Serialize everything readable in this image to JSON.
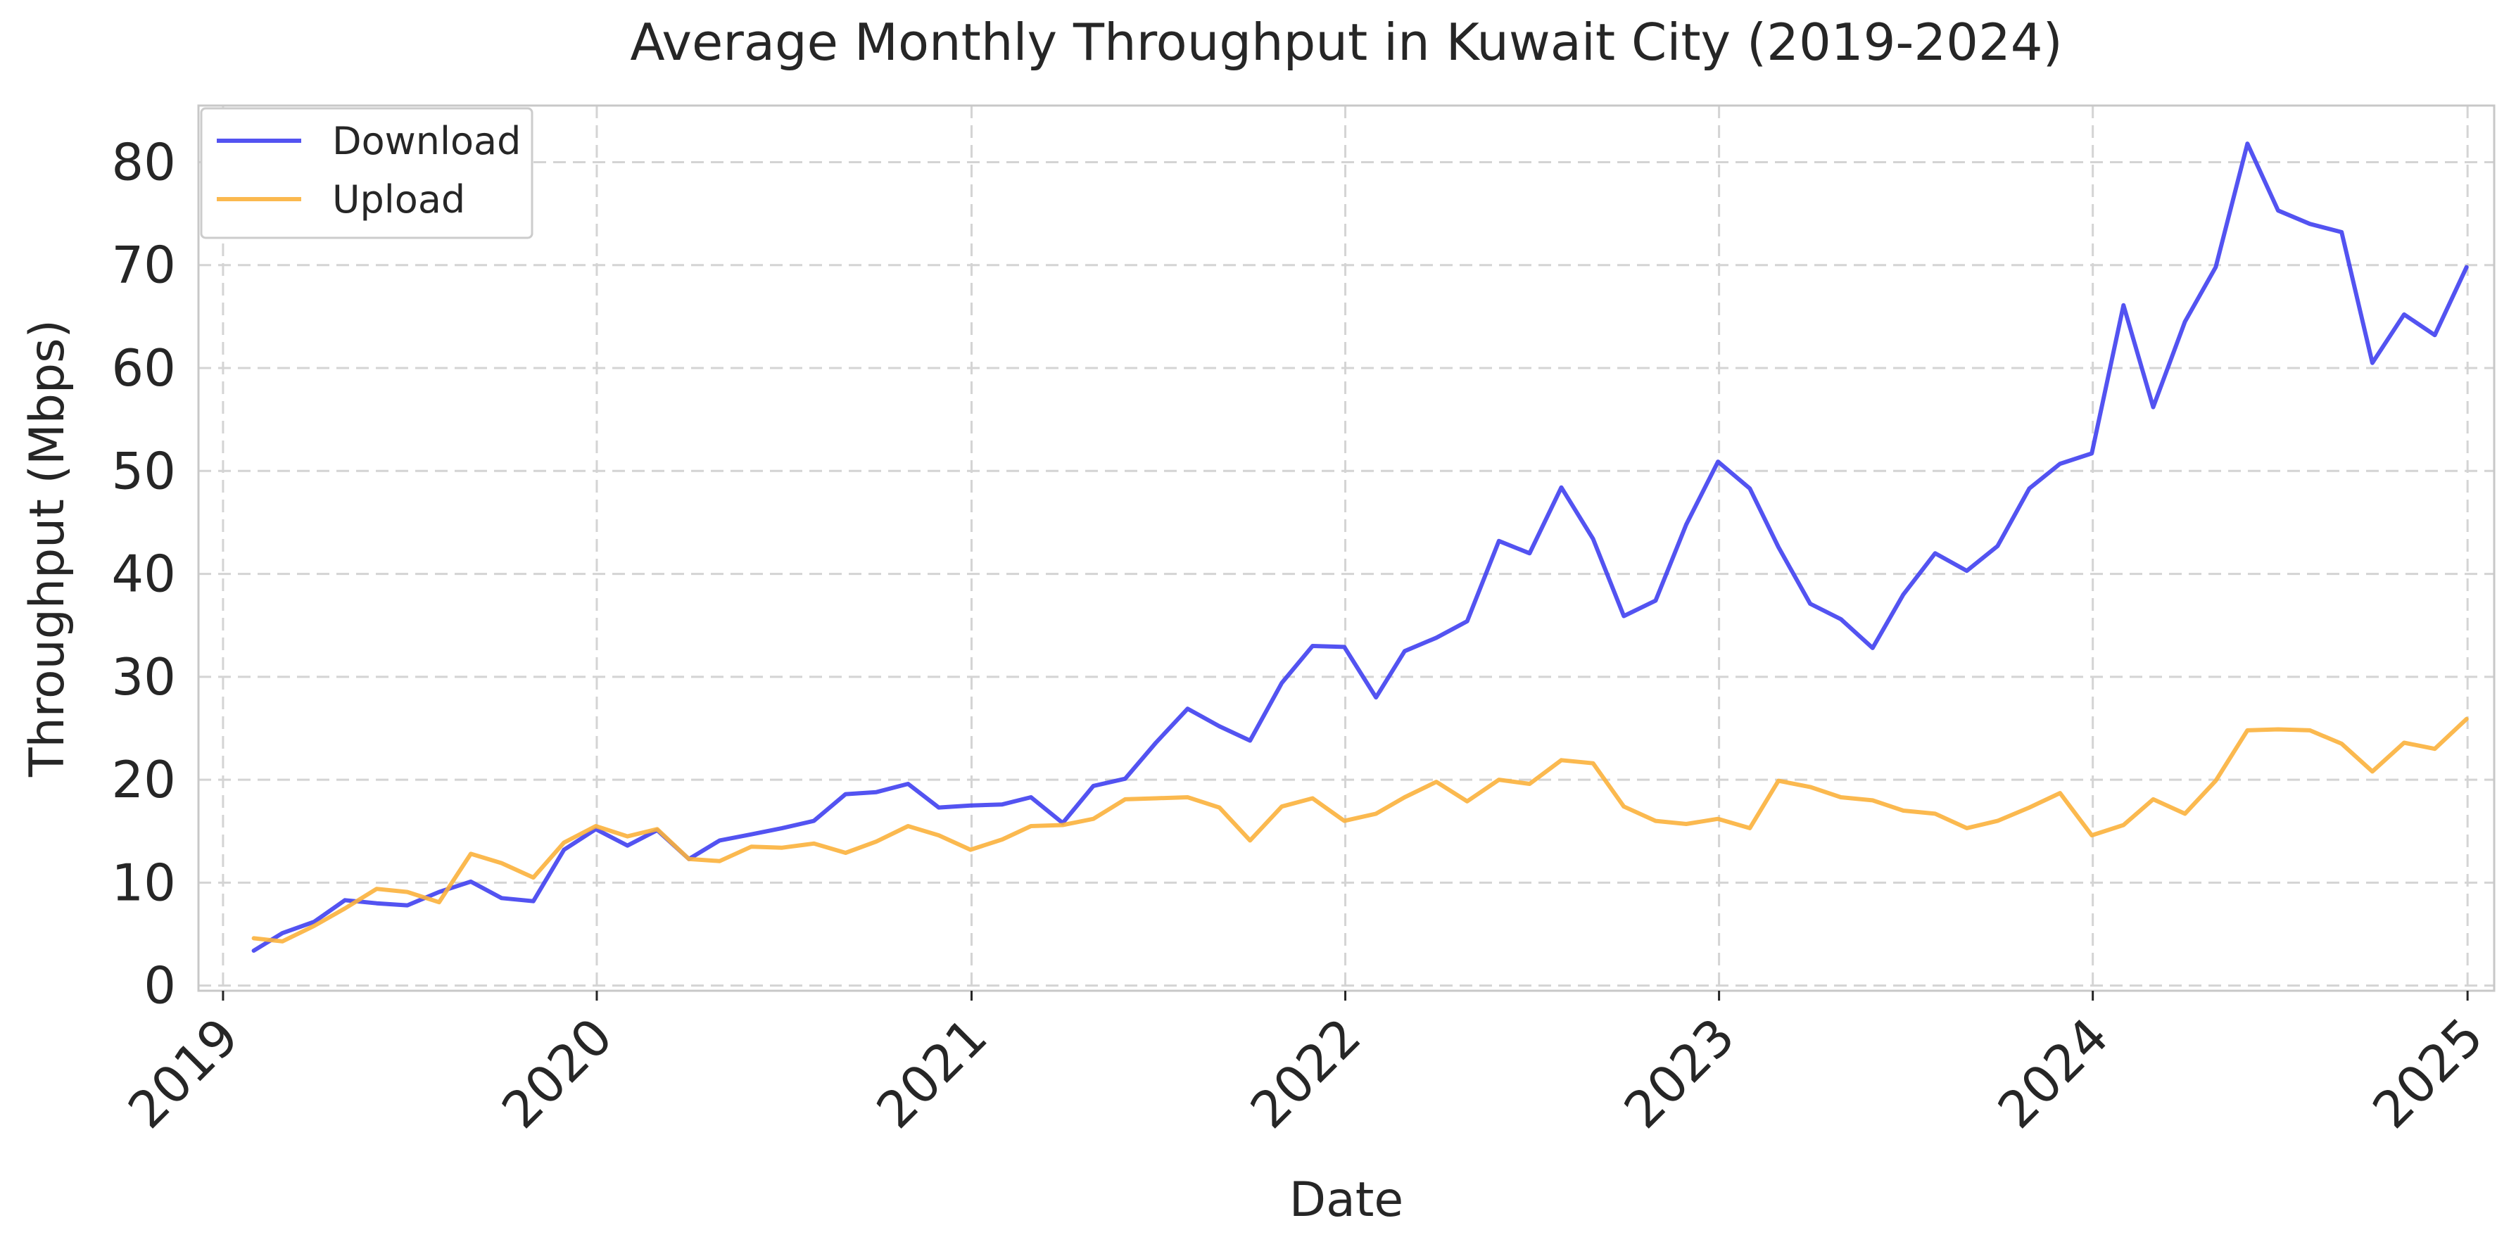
{
  "chart_data": {
    "type": "line",
    "title": "Average Monthly Throughput in Kuwait City (2019-2024)",
    "xlabel": "Date",
    "ylabel": "Throughput (Mbps)",
    "ylim": [
      -0.5,
      85.5
    ],
    "xlim": [
      "2018-12-08",
      "2025-01-27"
    ],
    "x_ticks": [
      "2019",
      "2020",
      "2021",
      "2022",
      "2023",
      "2024",
      "2025"
    ],
    "y_ticks": [
      0,
      10,
      20,
      30,
      40,
      50,
      60,
      70,
      80
    ],
    "grid": true,
    "legend_position": "top-left",
    "x": [
      "2019-01-31",
      "2019-02-28",
      "2019-03-31",
      "2019-04-30",
      "2019-05-31",
      "2019-06-30",
      "2019-07-31",
      "2019-08-31",
      "2019-09-30",
      "2019-10-31",
      "2019-11-30",
      "2019-12-31",
      "2020-01-31",
      "2020-02-29",
      "2020-03-31",
      "2020-04-30",
      "2020-05-31",
      "2020-06-30",
      "2020-07-31",
      "2020-08-31",
      "2020-09-30",
      "2020-10-31",
      "2020-11-30",
      "2020-12-31",
      "2021-01-31",
      "2021-02-28",
      "2021-03-31",
      "2021-04-30",
      "2021-05-31",
      "2021-06-30",
      "2021-07-31",
      "2021-08-31",
      "2021-09-30",
      "2021-10-31",
      "2021-11-30",
      "2021-12-31",
      "2022-01-31",
      "2022-02-28",
      "2022-03-31",
      "2022-04-30",
      "2022-05-31",
      "2022-06-30",
      "2022-07-31",
      "2022-08-31",
      "2022-09-30",
      "2022-10-31",
      "2022-11-30",
      "2022-12-31",
      "2023-01-31",
      "2023-02-28",
      "2023-03-31",
      "2023-04-30",
      "2023-05-31",
      "2023-06-30",
      "2023-07-31",
      "2023-08-31",
      "2023-09-30",
      "2023-10-31",
      "2023-11-30",
      "2023-12-31",
      "2024-01-31",
      "2024-02-29",
      "2024-03-31",
      "2024-04-30",
      "2024-05-31",
      "2024-06-30",
      "2024-07-31",
      "2024-08-31",
      "2024-09-30",
      "2024-10-31",
      "2024-11-30",
      "2024-12-31"
    ],
    "series": [
      {
        "name": "Download",
        "color": "#4040f0",
        "values": [
          3.4,
          5.1,
          6.2,
          8.3,
          8.0,
          7.8,
          9.1,
          10.1,
          8.5,
          8.2,
          13.2,
          15.2,
          13.6,
          15.1,
          12.3,
          14.1,
          14.7,
          15.3,
          16.0,
          18.6,
          18.8,
          19.6,
          17.3,
          17.5,
          17.6,
          18.3,
          15.8,
          19.4,
          20.1,
          23.6,
          26.9,
          25.2,
          23.8,
          29.4,
          33.0,
          32.9,
          28.0,
          32.5,
          33.8,
          35.4,
          43.2,
          42.0,
          48.4,
          43.4,
          35.9,
          37.4,
          44.8,
          50.9,
          48.3,
          42.6,
          37.1,
          35.6,
          32.8,
          38.0,
          42.0,
          40.3,
          42.7,
          48.3,
          50.7,
          51.7,
          66.1,
          56.2,
          64.5,
          69.8,
          81.8,
          75.3,
          74.0,
          73.2,
          60.5,
          65.2,
          63.2,
          69.8
        ]
      },
      {
        "name": "Upload",
        "color": "#fbb13c",
        "values": [
          4.6,
          4.3,
          5.8,
          7.5,
          9.4,
          9.1,
          8.1,
          12.8,
          11.9,
          10.5,
          13.9,
          15.5,
          14.5,
          15.2,
          12.3,
          12.1,
          13.5,
          13.4,
          13.8,
          12.9,
          14.0,
          15.5,
          14.6,
          13.2,
          14.2,
          15.5,
          15.6,
          16.2,
          18.1,
          18.2,
          18.3,
          17.3,
          14.1,
          17.4,
          18.2,
          16.0,
          16.7,
          18.3,
          19.8,
          17.9,
          20.0,
          19.6,
          21.9,
          21.6,
          17.4,
          16.0,
          15.7,
          16.2,
          15.3,
          19.9,
          19.3,
          18.3,
          18.0,
          17.0,
          16.7,
          15.3,
          16.0,
          17.3,
          18.7,
          14.6,
          15.6,
          18.1,
          16.7,
          19.9,
          24.8,
          24.9,
          24.8,
          23.5,
          20.8,
          23.6,
          23.0,
          25.9
        ]
      }
    ]
  }
}
